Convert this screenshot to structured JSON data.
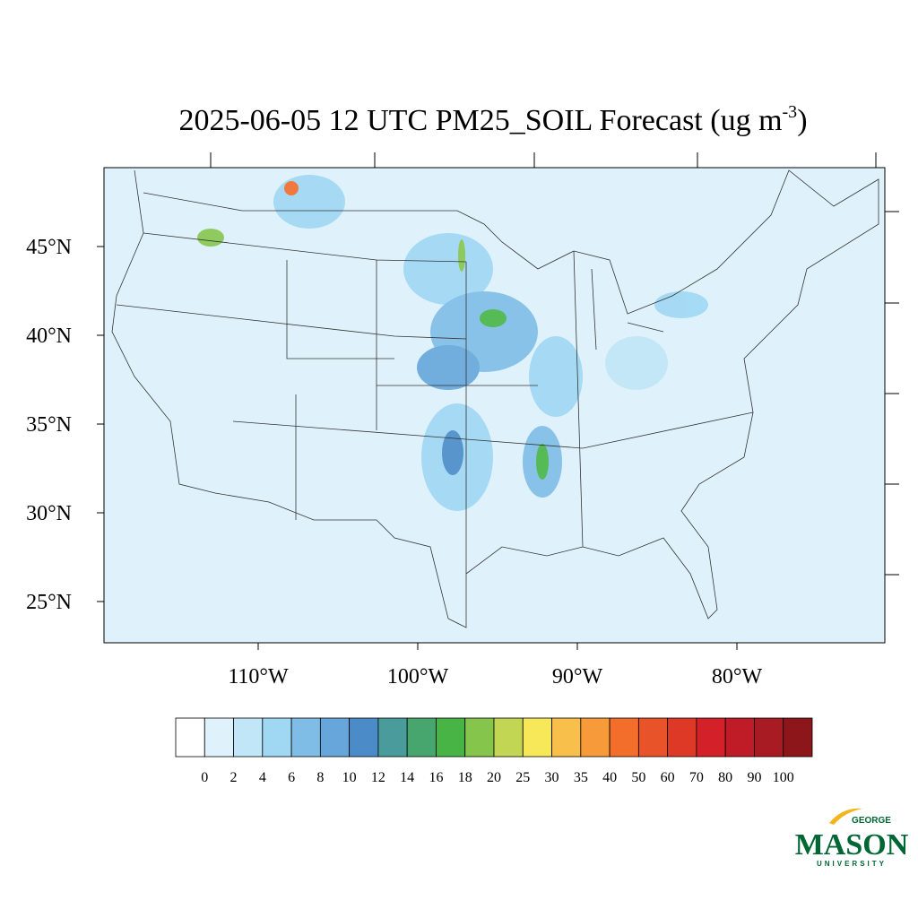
{
  "title": {
    "main": "2025-06-05 12 UTC PM25_SOIL Forecast (ug m",
    "sup": "-3",
    "end": ")"
  },
  "map": {
    "lat_labels": [
      "45°N",
      "40°N",
      "35°N",
      "30°N",
      "25°N"
    ],
    "lon_labels": [
      "110°W",
      "100°W",
      "90°W",
      "80°W"
    ],
    "background": "#dff2fb"
  },
  "colorbar": {
    "levels": [
      0,
      2,
      4,
      6,
      8,
      10,
      12,
      14,
      16,
      18,
      20,
      25,
      30,
      35,
      40,
      50,
      60,
      70,
      80,
      90,
      100
    ],
    "colors": [
      "#ffffff",
      "#dff2fb",
      "#c0e6f7",
      "#a0d8f4",
      "#80bde6",
      "#66a6da",
      "#4a8bc8",
      "#4a9b9b",
      "#46a66e",
      "#48b446",
      "#86c54c",
      "#c3d654",
      "#f7e85a",
      "#f8bf4a",
      "#f69a3a",
      "#f36d2b",
      "#e85329",
      "#de3827",
      "#d42029",
      "#bf1c27",
      "#a91b22",
      "#8c1619"
    ]
  },
  "logo": {
    "top": "GEORGE",
    "name": "MASON",
    "bottom": "UNIVERSITY"
  }
}
